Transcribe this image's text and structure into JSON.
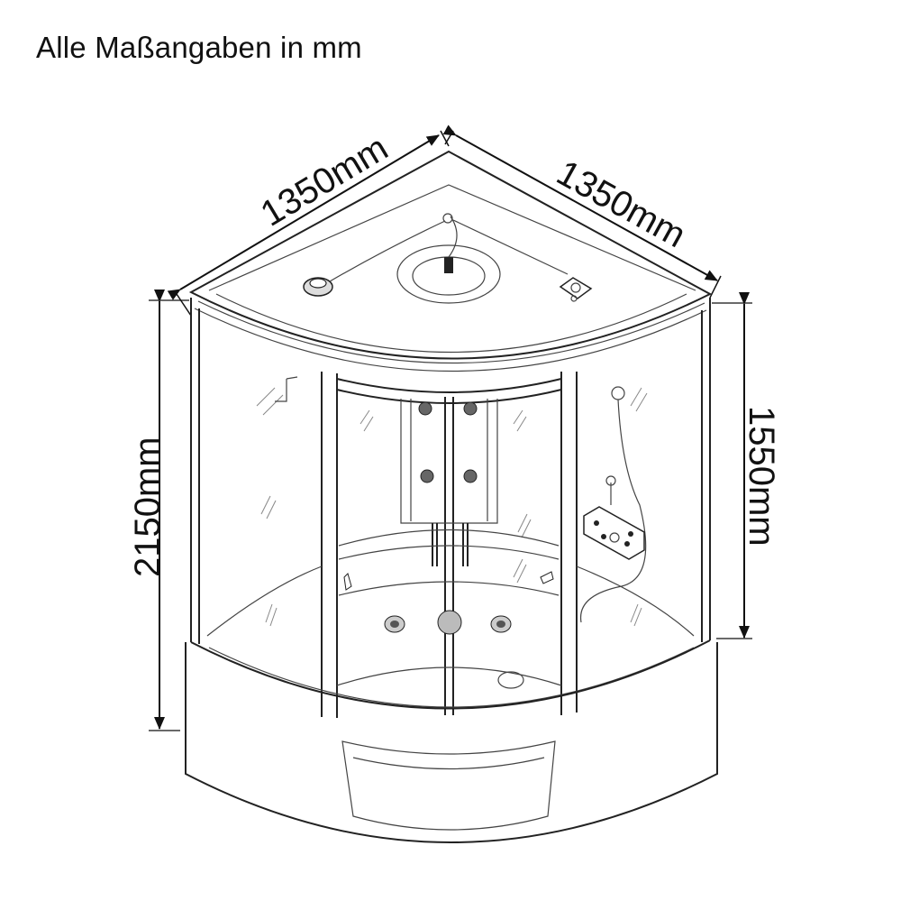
{
  "title": "Alle Maßangaben in mm",
  "dimensions": {
    "top_left": "1350mm",
    "top_right": "1350mm",
    "total_height": "2150mm",
    "cabin_height": "1550mm"
  },
  "colors": {
    "line": "#222222",
    "background": "#ffffff"
  }
}
